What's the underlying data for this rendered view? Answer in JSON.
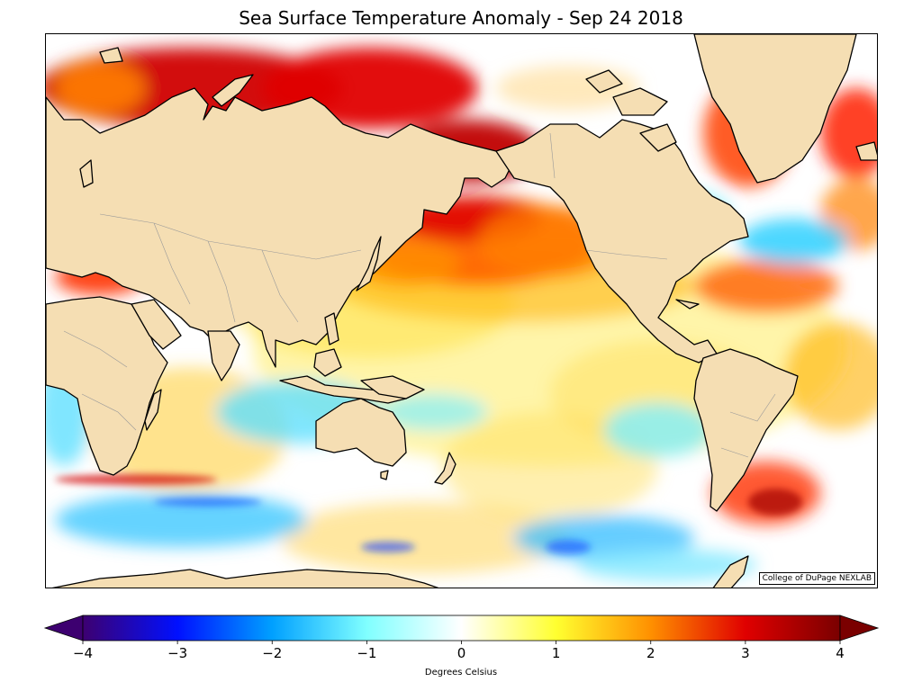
{
  "title": "Sea Surface Temperature Anomaly - Sep 24 2018",
  "credit": "College of DuPage NEXLAB",
  "colorbar": {
    "label": "Degrees Celsius",
    "min": -4,
    "max": 4,
    "ticks": [
      "−4",
      "−3",
      "−2",
      "−1",
      "0",
      "1",
      "2",
      "3",
      "4"
    ],
    "colors": [
      "#3d0070",
      "#0010ff",
      "#00a0ff",
      "#80ffff",
      "#ffffff",
      "#ffff30",
      "#ff9000",
      "#e00000",
      "#7a0000"
    ]
  },
  "colors": {
    "land": "#f5deb3",
    "coast": "#000000",
    "border": "#999999"
  }
}
